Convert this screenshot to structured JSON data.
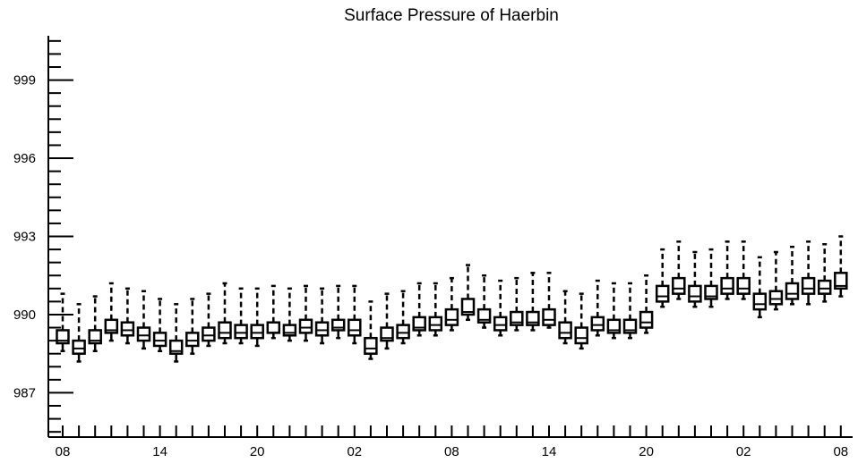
{
  "chart_data": {
    "type": "boxplot",
    "title": "Surface Pressure of Haerbin",
    "xlabel": "",
    "ylabel": "",
    "ylim": [
      985.3,
      1000.7
    ],
    "y_ticks": [
      987,
      990,
      993,
      996,
      999
    ],
    "x_tick_labels": [
      "08",
      "14",
      "20",
      "02",
      "08",
      "14",
      "20",
      "02",
      "08"
    ],
    "x_tick_positions": [
      0,
      6,
      12,
      18,
      24,
      30,
      36,
      42,
      48
    ],
    "grid": false,
    "legend": "none",
    "boxes": [
      {
        "x": 0,
        "whisker_low": 988.6,
        "q1": 988.9,
        "median": 989.0,
        "q3": 989.4,
        "whisker_high": 990.8
      },
      {
        "x": 1,
        "whisker_low": 988.2,
        "q1": 988.5,
        "median": 988.7,
        "q3": 989.0,
        "whisker_high": 990.4
      },
      {
        "x": 2,
        "whisker_low": 988.6,
        "q1": 988.9,
        "median": 989.0,
        "q3": 989.4,
        "whisker_high": 990.7
      },
      {
        "x": 3,
        "whisker_low": 989.0,
        "q1": 989.3,
        "median": 989.4,
        "q3": 989.8,
        "whisker_high": 991.2
      },
      {
        "x": 4,
        "whisker_low": 988.9,
        "q1": 989.2,
        "median": 989.4,
        "q3": 989.7,
        "whisker_high": 991.0
      },
      {
        "x": 5,
        "whisker_low": 988.7,
        "q1": 989.0,
        "median": 989.2,
        "q3": 989.5,
        "whisker_high": 990.9
      },
      {
        "x": 6,
        "whisker_low": 988.6,
        "q1": 988.8,
        "median": 989.0,
        "q3": 989.3,
        "whisker_high": 990.6
      },
      {
        "x": 7,
        "whisker_low": 988.2,
        "q1": 988.5,
        "median": 988.6,
        "q3": 989.0,
        "whisker_high": 990.4
      },
      {
        "x": 8,
        "whisker_low": 988.5,
        "q1": 988.8,
        "median": 989.0,
        "q3": 989.3,
        "whisker_high": 990.6
      },
      {
        "x": 9,
        "whisker_low": 988.8,
        "q1": 989.0,
        "median": 989.2,
        "q3": 989.5,
        "whisker_high": 990.8
      },
      {
        "x": 10,
        "whisker_low": 988.9,
        "q1": 989.1,
        "median": 989.3,
        "q3": 989.7,
        "whisker_high": 991.2
      },
      {
        "x": 11,
        "whisker_low": 988.9,
        "q1": 989.1,
        "median": 989.3,
        "q3": 989.6,
        "whisker_high": 991.0
      },
      {
        "x": 12,
        "whisker_low": 988.8,
        "q1": 989.1,
        "median": 989.3,
        "q3": 989.6,
        "whisker_high": 991.0
      },
      {
        "x": 13,
        "whisker_low": 989.1,
        "q1": 989.3,
        "median": 989.3,
        "q3": 989.7,
        "whisker_high": 991.1
      },
      {
        "x": 14,
        "whisker_low": 989.0,
        "q1": 989.2,
        "median": 989.3,
        "q3": 989.6,
        "whisker_high": 991.0
      },
      {
        "x": 15,
        "whisker_low": 989.0,
        "q1": 989.3,
        "median": 989.5,
        "q3": 989.8,
        "whisker_high": 991.1
      },
      {
        "x": 16,
        "whisker_low": 988.9,
        "q1": 989.2,
        "median": 989.4,
        "q3": 989.7,
        "whisker_high": 991.0
      },
      {
        "x": 17,
        "whisker_low": 989.1,
        "q1": 989.4,
        "median": 989.5,
        "q3": 989.8,
        "whisker_high": 991.1
      },
      {
        "x": 18,
        "whisker_low": 988.9,
        "q1": 989.2,
        "median": 989.4,
        "q3": 989.8,
        "whisker_high": 991.1
      },
      {
        "x": 19,
        "whisker_low": 988.3,
        "q1": 988.5,
        "median": 988.7,
        "q3": 989.1,
        "whisker_high": 990.5
      },
      {
        "x": 20,
        "whisker_low": 988.7,
        "q1": 989.0,
        "median": 989.1,
        "q3": 989.5,
        "whisker_high": 990.8
      },
      {
        "x": 21,
        "whisker_low": 988.9,
        "q1": 989.1,
        "median": 989.3,
        "q3": 989.6,
        "whisker_high": 990.9
      },
      {
        "x": 22,
        "whisker_low": 989.2,
        "q1": 989.4,
        "median": 989.5,
        "q3": 989.9,
        "whisker_high": 991.2
      },
      {
        "x": 23,
        "whisker_low": 989.2,
        "q1": 989.4,
        "median": 989.6,
        "q3": 989.9,
        "whisker_high": 991.2
      },
      {
        "x": 24,
        "whisker_low": 989.4,
        "q1": 989.6,
        "median": 989.8,
        "q3": 990.2,
        "whisker_high": 991.4
      },
      {
        "x": 25,
        "whisker_low": 989.8,
        "q1": 990.0,
        "median": 990.1,
        "q3": 990.6,
        "whisker_high": 991.9
      },
      {
        "x": 26,
        "whisker_low": 989.5,
        "q1": 989.7,
        "median": 989.8,
        "q3": 990.2,
        "whisker_high": 991.5
      },
      {
        "x": 27,
        "whisker_low": 989.2,
        "q1": 989.4,
        "median": 989.6,
        "q3": 989.9,
        "whisker_high": 991.3
      },
      {
        "x": 28,
        "whisker_low": 989.4,
        "q1": 989.6,
        "median": 989.7,
        "q3": 990.1,
        "whisker_high": 991.4
      },
      {
        "x": 29,
        "whisker_low": 989.4,
        "q1": 989.6,
        "median": 989.7,
        "q3": 990.1,
        "whisker_high": 991.6
      },
      {
        "x": 30,
        "whisker_low": 989.5,
        "q1": 989.6,
        "median": 989.8,
        "q3": 990.2,
        "whisker_high": 991.6
      },
      {
        "x": 31,
        "whisker_low": 988.9,
        "q1": 989.1,
        "median": 989.3,
        "q3": 989.7,
        "whisker_high": 990.9
      },
      {
        "x": 32,
        "whisker_low": 988.7,
        "q1": 988.9,
        "median": 989.1,
        "q3": 989.5,
        "whisker_high": 990.8
      },
      {
        "x": 33,
        "whisker_low": 989.2,
        "q1": 989.4,
        "median": 989.6,
        "q3": 989.9,
        "whisker_high": 991.3
      },
      {
        "x": 34,
        "whisker_low": 989.1,
        "q1": 989.3,
        "median": 989.4,
        "q3": 989.8,
        "whisker_high": 991.2
      },
      {
        "x": 35,
        "whisker_low": 989.1,
        "q1": 989.3,
        "median": 989.4,
        "q3": 989.8,
        "whisker_high": 991.2
      },
      {
        "x": 36,
        "whisker_low": 989.3,
        "q1": 989.5,
        "median": 989.7,
        "q3": 990.1,
        "whisker_high": 991.5
      },
      {
        "x": 37,
        "whisker_low": 990.3,
        "q1": 990.5,
        "median": 990.7,
        "q3": 991.1,
        "whisker_high": 992.5
      },
      {
        "x": 38,
        "whisker_low": 990.6,
        "q1": 990.8,
        "median": 991.0,
        "q3": 991.4,
        "whisker_high": 992.8
      },
      {
        "x": 39,
        "whisker_low": 990.3,
        "q1": 990.5,
        "median": 990.7,
        "q3": 991.1,
        "whisker_high": 992.4
      },
      {
        "x": 40,
        "whisker_low": 990.3,
        "q1": 990.6,
        "median": 990.7,
        "q3": 991.1,
        "whisker_high": 992.5
      },
      {
        "x": 41,
        "whisker_low": 990.6,
        "q1": 990.8,
        "median": 991.0,
        "q3": 991.4,
        "whisker_high": 992.8
      },
      {
        "x": 42,
        "whisker_low": 990.6,
        "q1": 990.8,
        "median": 991.0,
        "q3": 991.4,
        "whisker_high": 992.8
      },
      {
        "x": 43,
        "whisker_low": 989.9,
        "q1": 990.2,
        "median": 990.4,
        "q3": 990.8,
        "whisker_high": 992.2
      },
      {
        "x": 44,
        "whisker_low": 990.2,
        "q1": 990.4,
        "median": 990.6,
        "q3": 990.9,
        "whisker_high": 992.4
      },
      {
        "x": 45,
        "whisker_low": 990.4,
        "q1": 990.6,
        "median": 990.8,
        "q3": 991.2,
        "whisker_high": 992.6
      },
      {
        "x": 46,
        "whisker_low": 990.4,
        "q1": 990.8,
        "median": 991.0,
        "q3": 991.4,
        "whisker_high": 992.8
      },
      {
        "x": 47,
        "whisker_low": 990.5,
        "q1": 990.8,
        "median": 991.0,
        "q3": 991.3,
        "whisker_high": 992.7
      },
      {
        "x": 48,
        "whisker_low": 990.7,
        "q1": 991.0,
        "median": 991.1,
        "q3": 991.6,
        "whisker_high": 993.0
      }
    ]
  }
}
